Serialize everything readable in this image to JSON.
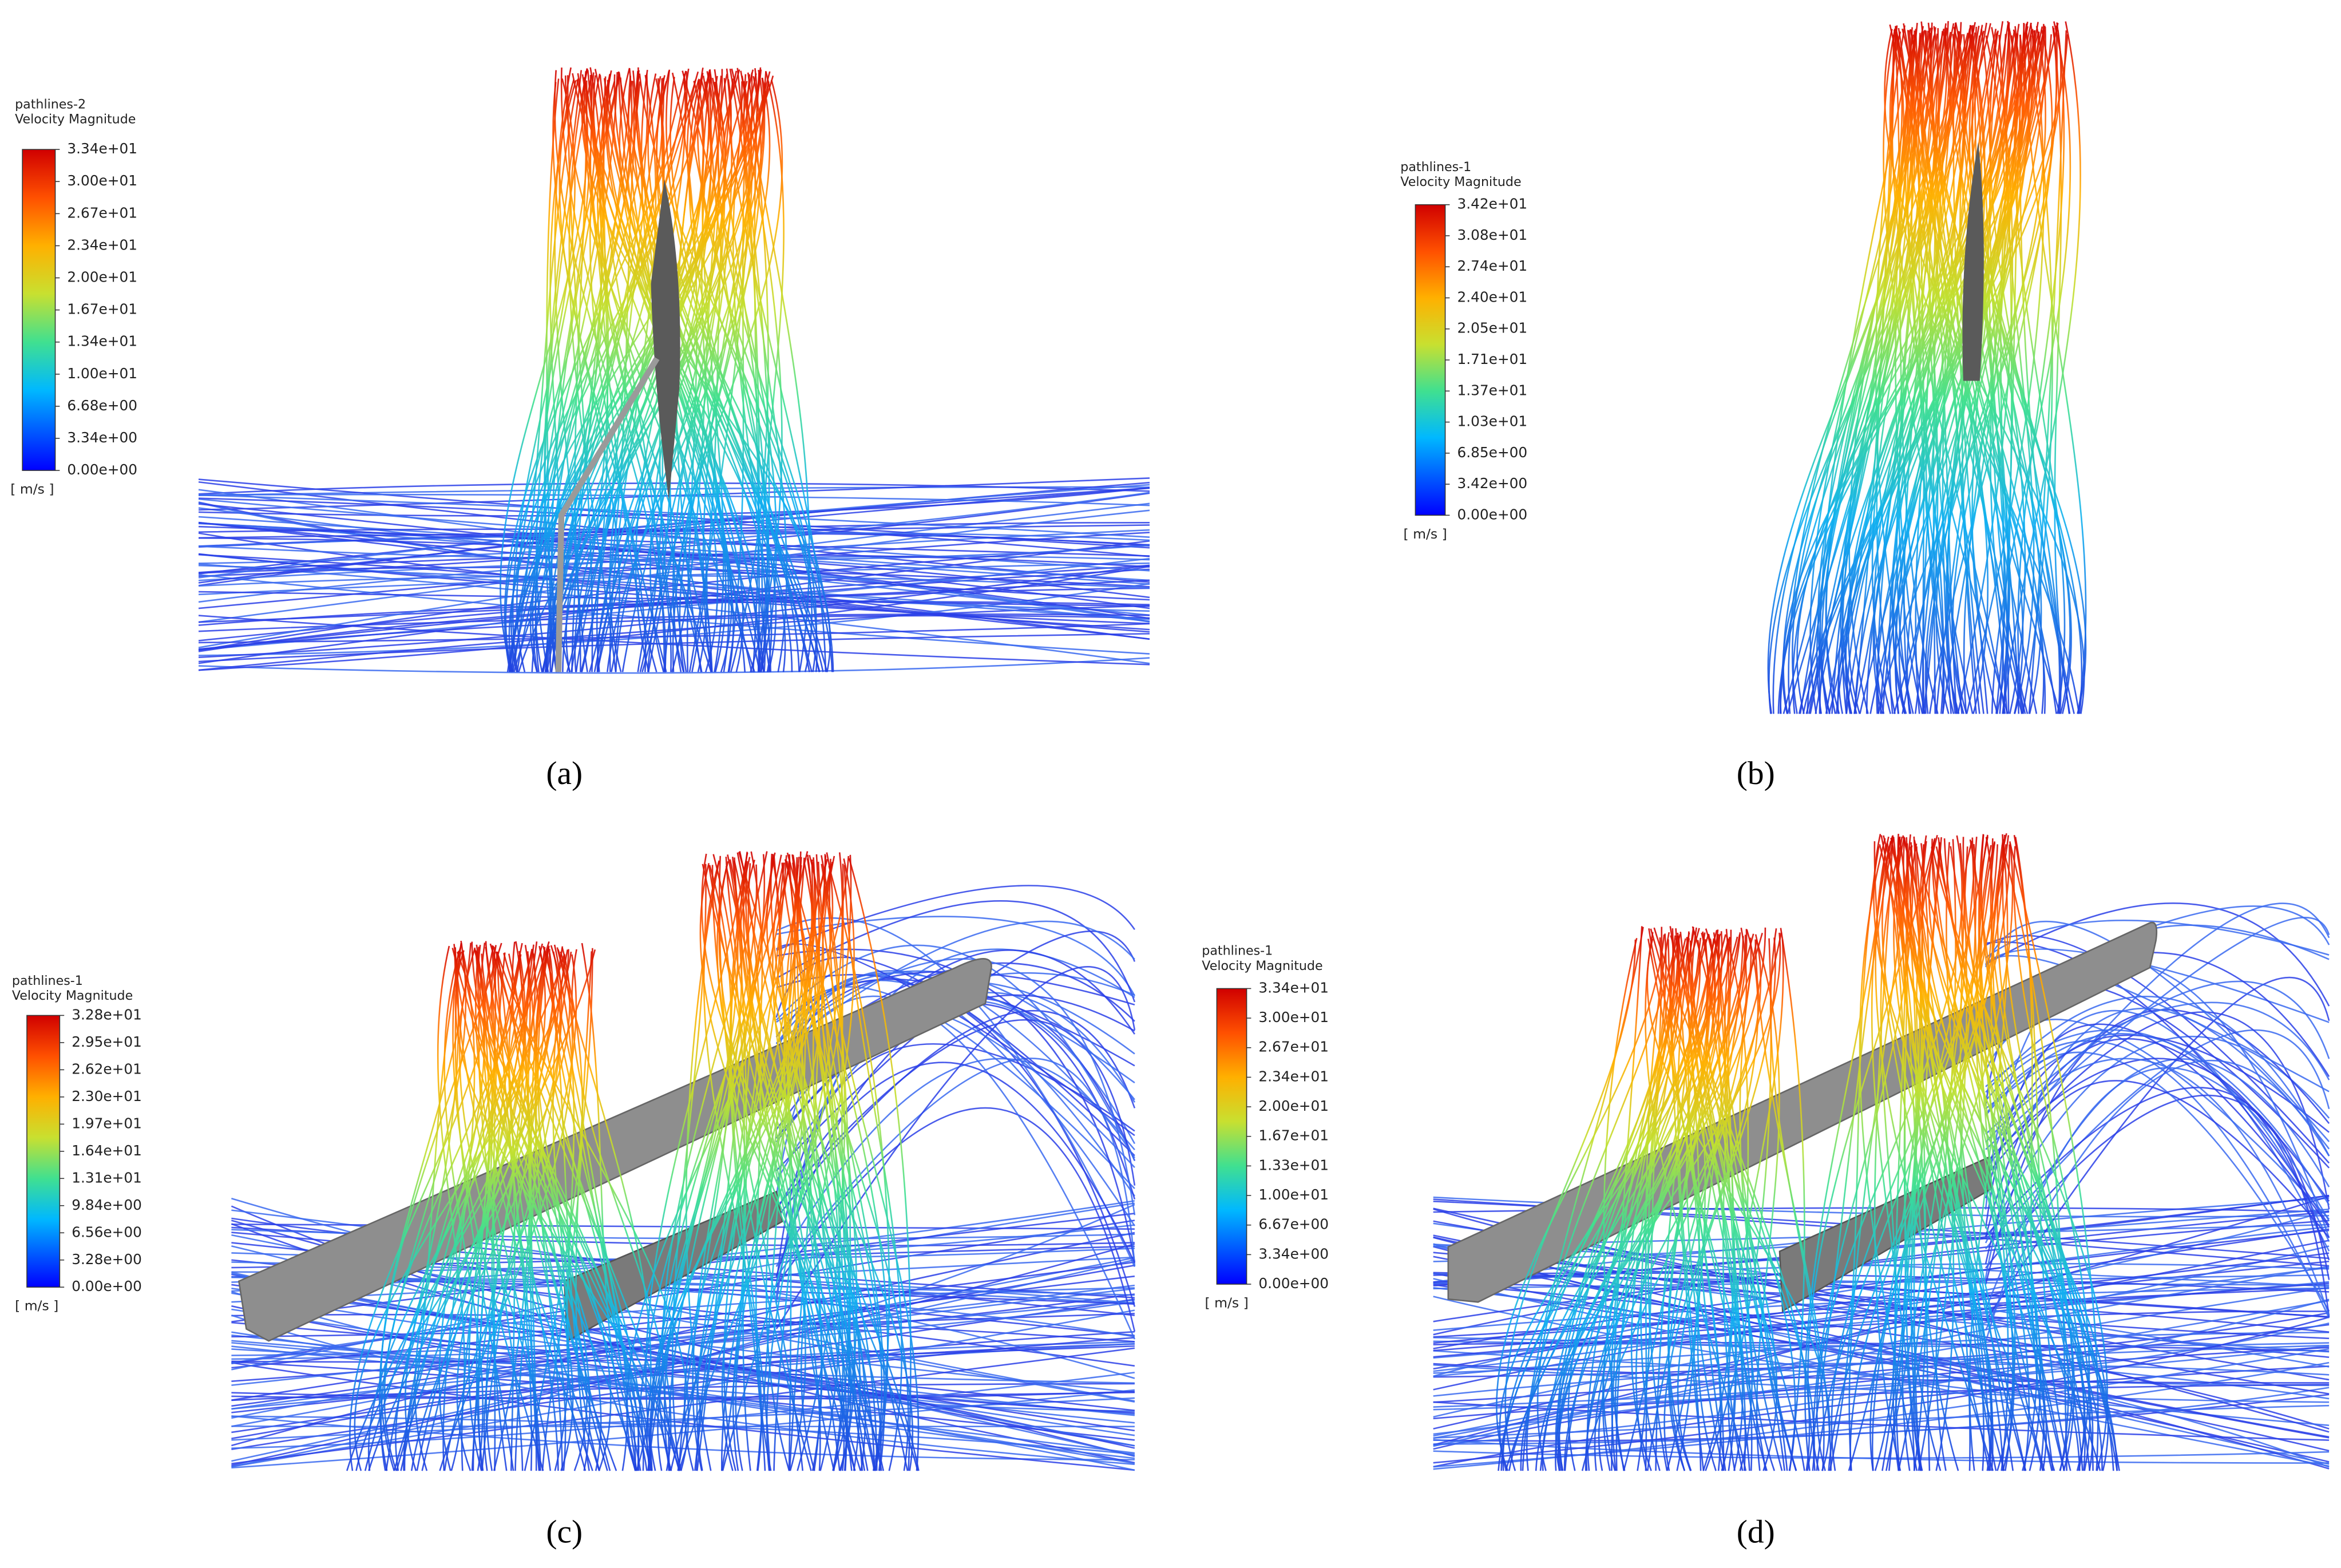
{
  "panels": [
    {
      "legend": {
        "title": "pathlines-2",
        "quantity": "Velocity Magnitude",
        "ticks": [
          "3.34e+01",
          "3.00e+01",
          "2.67e+01",
          "2.34e+01",
          "2.00e+01",
          "1.67e+01",
          "1.34e+01",
          "1.00e+01",
          "6.68e+00",
          "3.34e+00",
          "0.00e+00"
        ],
        "unit": "[ m/s ]"
      },
      "caption": "(a)"
    },
    {
      "legend": {
        "title": "pathlines-1",
        "quantity": "Velocity Magnitude",
        "ticks": [
          "3.42e+01",
          "3.08e+01",
          "2.74e+01",
          "2.40e+01",
          "2.05e+01",
          "1.71e+01",
          "1.37e+01",
          "1.03e+01",
          "6.85e+00",
          "3.42e+00",
          "0.00e+00"
        ],
        "unit": "[ m/s ]"
      },
      "caption": "(b)"
    },
    {
      "legend": {
        "title": "pathlines-1",
        "quantity": "Velocity Magnitude",
        "ticks": [
          "3.28e+01",
          "2.95e+01",
          "2.62e+01",
          "2.30e+01",
          "1.97e+01",
          "1.64e+01",
          "1.31e+01",
          "9.84e+00",
          "6.56e+00",
          "3.28e+00",
          "0.00e+00"
        ],
        "unit": "[ m/s ]"
      },
      "caption": "(c)"
    },
    {
      "legend": {
        "title": "pathlines-1",
        "quantity": "Velocity Magnitude",
        "ticks": [
          "3.34e+01",
          "3.00e+01",
          "2.67e+01",
          "2.34e+01",
          "2.00e+01",
          "1.67e+01",
          "1.33e+01",
          "1.00e+01",
          "6.67e+00",
          "3.34e+00",
          "0.00e+00"
        ],
        "unit": "[ m/s ]"
      },
      "caption": "(d)"
    }
  ]
}
